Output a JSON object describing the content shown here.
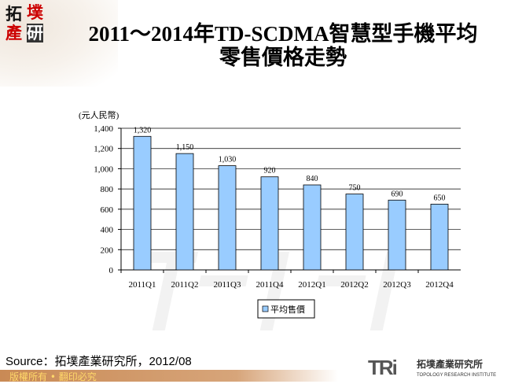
{
  "logo": {
    "text": [
      "拓",
      "墣",
      "產",
      "研"
    ]
  },
  "title": {
    "line1": "2011～2014年TD-SCDMA智慧型手機平均",
    "line2": "零售價格走勢"
  },
  "chart_data": {
    "type": "bar",
    "title": "2011～2014年TD-SCDMA智慧型手機平均零售價格走勢",
    "ylabel": "(元人民幣)",
    "xlabel": "",
    "categories": [
      "2011Q1",
      "2011Q2",
      "2011Q3",
      "2011Q4",
      "2012Q1",
      "2012Q2",
      "2012Q3",
      "2012Q4"
    ],
    "series": [
      {
        "name": "平均售價",
        "values": [
          1320,
          1150,
          1030,
          920,
          840,
          750,
          690,
          650
        ],
        "color": "#99ccff"
      }
    ],
    "data_labels": [
      "1,320",
      "1,150",
      "1,030",
      "920",
      "840",
      "750",
      "690",
      "650"
    ],
    "ylim": [
      0,
      1400
    ],
    "yticks": [
      "0",
      "200",
      "400",
      "600",
      "800",
      "1,000",
      "1,200",
      "1,400"
    ],
    "grid": true,
    "legend": "bottom"
  },
  "source": "Source：拓墣產業研究所，2012/08",
  "footer": "版權所有 • 翻印必究",
  "brand": {
    "mark": "TRi",
    "name_zh": "拓墣產業研究所",
    "name_en": "TOPOLOGY RESEARCH INSTITUTE"
  }
}
